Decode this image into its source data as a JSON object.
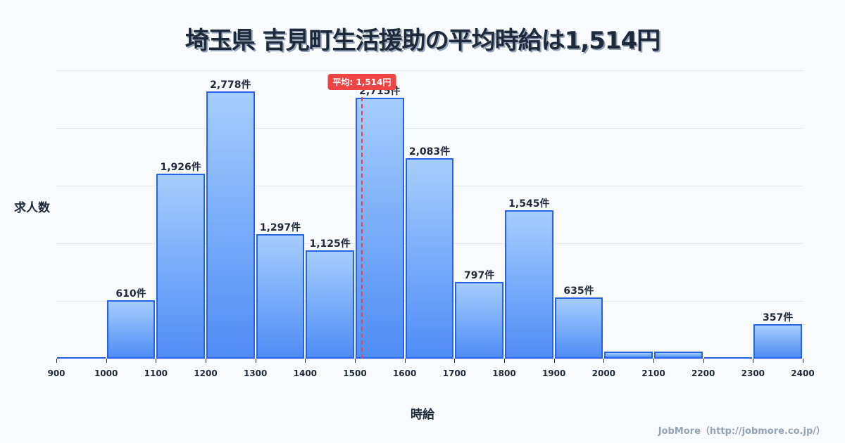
{
  "title": "埼玉県 吉見町生活援助の平均時給は1,514円",
  "credit": "JobMore（http://jobmore.co.jp/）",
  "chart_data": {
    "type": "bar",
    "title": "埼玉県 吉見町生活援助の平均時給は1,514円",
    "xlabel": "時給",
    "ylabel": "求人数",
    "x_ticks": [
      900,
      1000,
      1100,
      1200,
      1300,
      1400,
      1500,
      1600,
      1700,
      1800,
      1900,
      2000,
      2100,
      2200,
      2300,
      2400
    ],
    "bins": [
      {
        "from": 900,
        "to": 1000,
        "value": 0,
        "label": ""
      },
      {
        "from": 1000,
        "to": 1100,
        "value": 610,
        "label": "610件"
      },
      {
        "from": 1100,
        "to": 1200,
        "value": 1926,
        "label": "1,926件"
      },
      {
        "from": 1200,
        "to": 1300,
        "value": 2778,
        "label": "2,778件"
      },
      {
        "from": 1300,
        "to": 1400,
        "value": 1297,
        "label": "1,297件"
      },
      {
        "from": 1400,
        "to": 1500,
        "value": 1125,
        "label": "1,125件"
      },
      {
        "from": 1500,
        "to": 1600,
        "value": 2715,
        "label": "2,715件"
      },
      {
        "from": 1600,
        "to": 1700,
        "value": 2083,
        "label": "2,083件"
      },
      {
        "from": 1700,
        "to": 1800,
        "value": 797,
        "label": "797件"
      },
      {
        "from": 1800,
        "to": 1900,
        "value": 1545,
        "label": "1,545件"
      },
      {
        "from": 1900,
        "to": 2000,
        "value": 635,
        "label": "635件"
      },
      {
        "from": 2000,
        "to": 2100,
        "value": 70,
        "label": ""
      },
      {
        "from": 2100,
        "to": 2200,
        "value": 70,
        "label": ""
      },
      {
        "from": 2200,
        "to": 2300,
        "value": 0,
        "label": ""
      },
      {
        "from": 2300,
        "to": 2400,
        "value": 357,
        "label": "357件"
      }
    ],
    "ylim": [
      0,
      3000
    ],
    "gridlines": [
      600,
      1200,
      1800,
      2400,
      3000
    ],
    "mean": {
      "value": 1514,
      "label": "平均: 1,514円",
      "color": "#ef4444"
    },
    "bar_color": "#2563eb",
    "grid": true,
    "legend": "none"
  }
}
